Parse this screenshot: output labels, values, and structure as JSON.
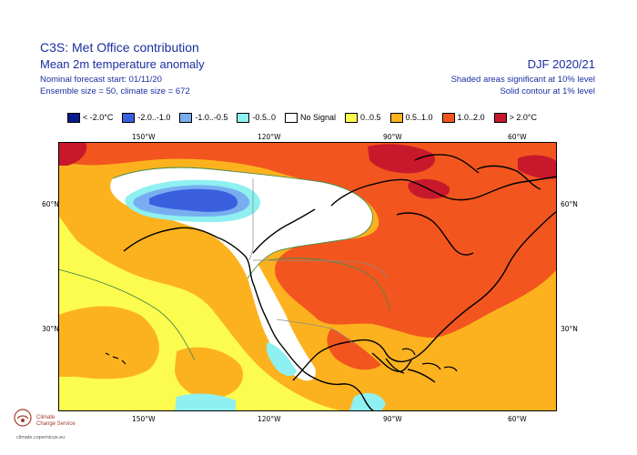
{
  "header": {
    "title": "C3S: Met Office contribution",
    "subtitle": "Mean 2m temperature anomaly",
    "forecast_start": "Nominal forecast start: 01/11/20",
    "ensemble": "Ensemble size = 50, climate size = 672",
    "season": "DJF 2020/21",
    "significance_shaded": "Shaded areas significant at 10% level",
    "significance_contour": "Solid contour at 1% level"
  },
  "legend": [
    {
      "label": "< -2.0°C",
      "color": "#0a1a8c"
    },
    {
      "label": "-2.0..-1.0",
      "color": "#3a60e0"
    },
    {
      "label": "-1.0..-0.5",
      "color": "#78aef0"
    },
    {
      "label": "-0.5..0",
      "color": "#8ef0f0"
    },
    {
      "label": "No Signal",
      "color": "#ffffff"
    },
    {
      "label": "0..0.5",
      "color": "#fcfc4e"
    },
    {
      "label": "0.5..1.0",
      "color": "#fcb21e"
    },
    {
      "label": "1.0..2.0",
      "color": "#f2561e"
    },
    {
      "label": "> 2.0°C",
      "color": "#c8182c"
    }
  ],
  "axes": {
    "lon_top": [
      "150°W",
      "120°W",
      "90°W",
      "60°W"
    ],
    "lon_bottom": [
      "150°W",
      "120°W",
      "90°W",
      "60°W"
    ],
    "lat_left": [
      "60°N",
      "30°N"
    ],
    "lat_right": [
      "60°N",
      "30°N"
    ]
  },
  "logo": {
    "line1": "Climate",
    "line2": "Change Service",
    "url": "climate.copernicus.eu"
  }
}
